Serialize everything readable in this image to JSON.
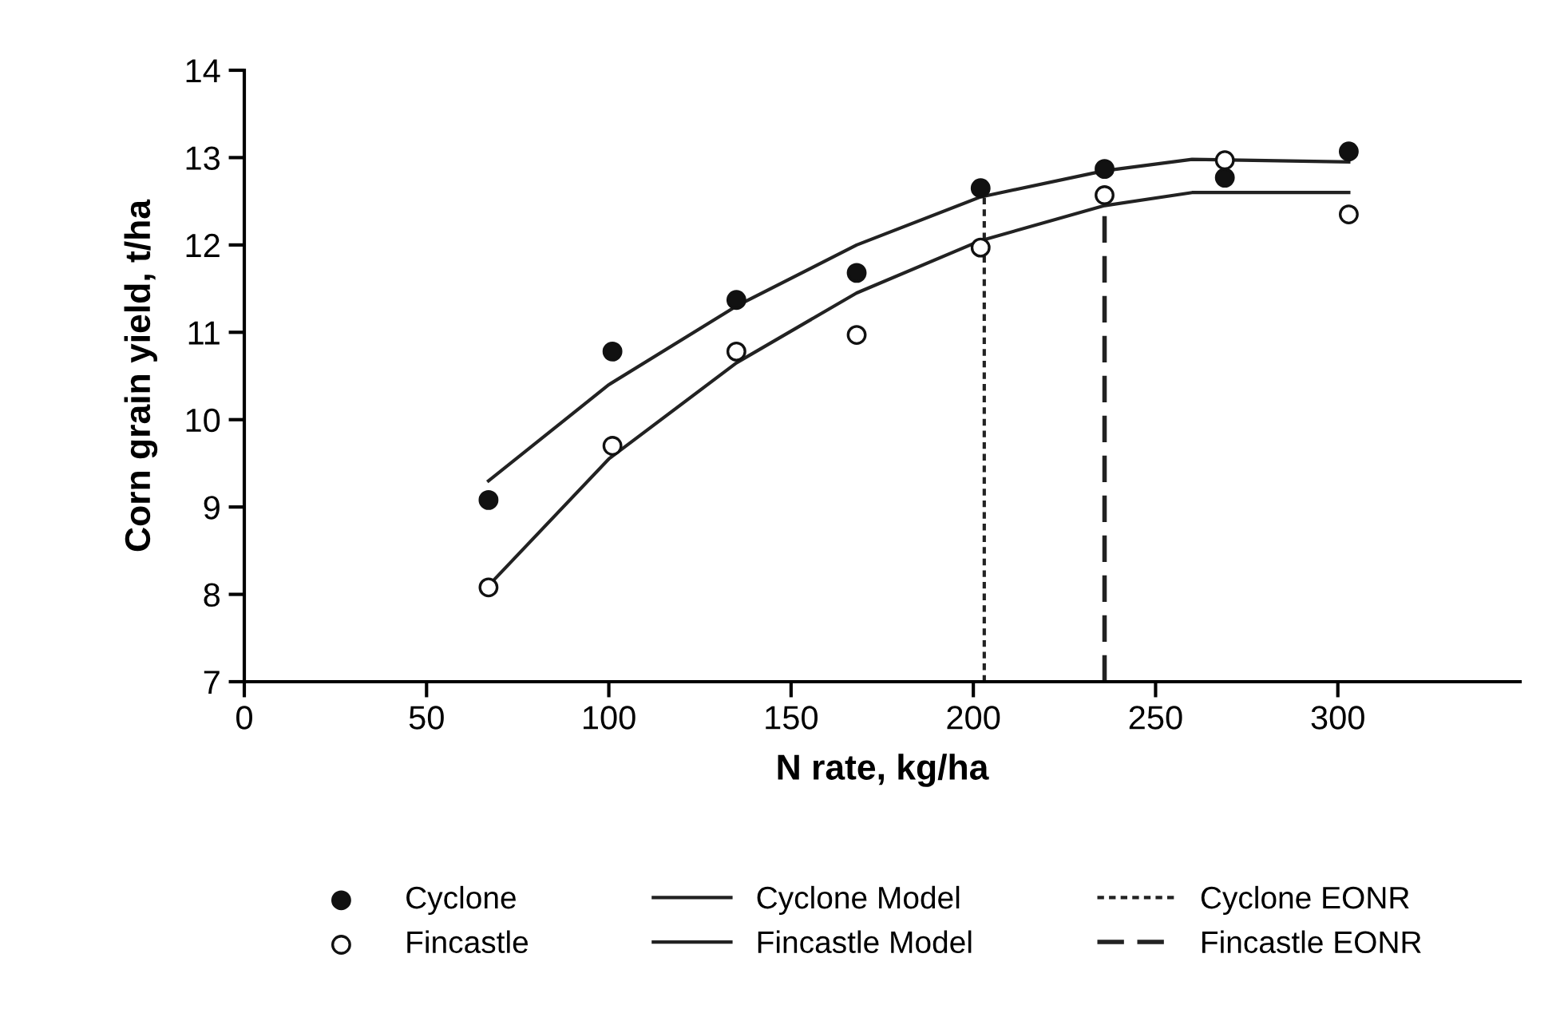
{
  "chart_data": {
    "type": "scatter",
    "xlabel": "N rate, kg/ha",
    "ylabel": "Corn grain yield, t/ha",
    "xlim": [
      0,
      350
    ],
    "xticks": [
      0,
      50,
      100,
      150,
      200,
      250,
      300
    ],
    "ylim": [
      7,
      14
    ],
    "yticks": [
      7,
      8,
      9,
      10,
      11,
      12,
      13,
      14
    ],
    "grid": false,
    "legend": "bottom",
    "series": [
      {
        "name": "Cyclone",
        "marker": "circle",
        "color": "#111111",
        "x": [
          67,
          101,
          135,
          168,
          202,
          236,
          269,
          303
        ],
        "values": [
          9.08,
          10.78,
          11.37,
          11.68,
          12.65,
          12.87,
          12.77,
          13.07
        ]
      },
      {
        "name": "Fincastle",
        "marker": "circle",
        "color": "#ffffff",
        "x": [
          67,
          101,
          135,
          168,
          202,
          236,
          269,
          303
        ],
        "values": [
          8.08,
          9.7,
          10.78,
          10.97,
          11.97,
          12.57,
          12.97,
          12.35
        ]
      },
      {
        "name": "Cyclone Model",
        "type": "line",
        "line_style": "solid",
        "color": "#222222",
        "x": [
          67,
          100,
          135,
          168,
          202,
          236,
          260,
          303
        ],
        "values": [
          9.3,
          10.4,
          11.3,
          12.0,
          12.55,
          12.85,
          12.98,
          12.95
        ]
      },
      {
        "name": "Fincastle Model",
        "type": "line",
        "line_style": "solid",
        "color": "#222222",
        "x": [
          67,
          100,
          135,
          168,
          202,
          236,
          260,
          303
        ],
        "values": [
          8.1,
          9.55,
          10.65,
          11.45,
          12.05,
          12.45,
          12.6,
          12.6
        ]
      },
      {
        "name": "Cyclone EONR",
        "type": "line",
        "line_style": "dotted",
        "color": "#222222",
        "x": [
          203,
          203
        ],
        "values": [
          7,
          12.55
        ]
      },
      {
        "name": "Fincastle EONR",
        "type": "line",
        "line_style": "dashed",
        "color": "#222222",
        "x": [
          236,
          236
        ],
        "values": [
          7,
          12.45
        ]
      }
    ]
  }
}
